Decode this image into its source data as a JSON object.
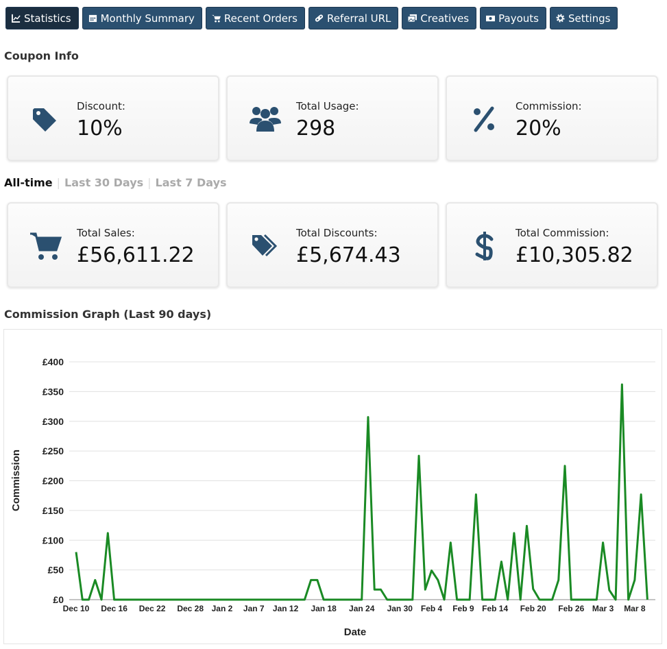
{
  "nav": [
    "Statistics",
    "Monthly Summary",
    "Recent Orders",
    "Referral URL",
    "Creatives",
    "Payouts",
    "Settings"
  ],
  "coupon_info": {
    "title": "Coupon Info",
    "cards": [
      {
        "label": "Discount:",
        "value": "10%"
      },
      {
        "label": "Total Usage:",
        "value": "298"
      },
      {
        "label": "Commission:",
        "value": "20%"
      }
    ]
  },
  "period_tabs": [
    "All-time",
    "Last 30 Days",
    "Last 7 Days"
  ],
  "totals": {
    "cards": [
      {
        "label": "Total Sales:",
        "value": "£56,611.22"
      },
      {
        "label": "Total Discounts:",
        "value": "£5,674.43"
      },
      {
        "label": "Total Commission:",
        "value": "£10,305.82"
      }
    ]
  },
  "chart_data": {
    "type": "line",
    "title": "Commission Graph (Last 90 days)",
    "x_label": "Date",
    "y_label": "Commission",
    "categories": [
      "Dec 10",
      null,
      null,
      null,
      null,
      null,
      "Dec 16",
      null,
      null,
      null,
      null,
      null,
      "Dec 22",
      null,
      null,
      null,
      null,
      null,
      "Dec 28",
      null,
      null,
      null,
      null,
      "Jan 2",
      null,
      null,
      null,
      null,
      "Jan 7",
      null,
      null,
      null,
      null,
      "Jan 12",
      null,
      null,
      null,
      null,
      null,
      "Jan 18",
      null,
      null,
      null,
      null,
      null,
      "Jan 24",
      null,
      null,
      null,
      null,
      null,
      "Jan 30",
      null,
      null,
      null,
      null,
      "Feb 4",
      null,
      null,
      null,
      null,
      "Feb 9",
      null,
      null,
      null,
      null,
      "Feb 14",
      null,
      null,
      null,
      null,
      null,
      "Feb 20",
      null,
      null,
      null,
      null,
      null,
      "Feb 26",
      null,
      null,
      null,
      null,
      "Mar 3",
      null,
      null,
      null,
      null,
      "Mar 8",
      null,
      null
    ],
    "values": [
      80,
      0,
      0,
      33,
      0,
      112,
      0,
      0,
      0,
      0,
      0,
      0,
      0,
      0,
      0,
      0,
      0,
      0,
      0,
      0,
      0,
      0,
      0,
      0,
      0,
      0,
      0,
      0,
      0,
      0,
      0,
      0,
      0,
      0,
      0,
      0,
      0,
      33,
      33,
      0,
      0,
      0,
      0,
      0,
      0,
      0,
      307,
      17,
      17,
      0,
      0,
      0,
      0,
      0,
      242,
      17,
      49,
      33,
      0,
      96,
      0,
      0,
      0,
      177,
      0,
      0,
      0,
      64,
      0,
      112,
      0,
      124,
      18,
      0,
      0,
      0,
      33,
      225,
      0,
      0,
      0,
      0,
      0,
      96,
      16,
      0,
      362,
      0,
      33,
      177,
      0
    ],
    "color": "#1a8a24",
    "ylim": [
      0,
      400
    ],
    "yticks": [
      {
        "value": 0,
        "label": "£0"
      },
      {
        "value": 50,
        "label": "£50"
      },
      {
        "value": 100,
        "label": "£100"
      },
      {
        "value": 150,
        "label": "£150"
      },
      {
        "value": 200,
        "label": "£200"
      },
      {
        "value": 250,
        "label": "£250"
      },
      {
        "value": 300,
        "label": "£300"
      },
      {
        "value": 350,
        "label": "£350"
      },
      {
        "value": 400,
        "label": "£400"
      }
    ],
    "grid": true
  }
}
